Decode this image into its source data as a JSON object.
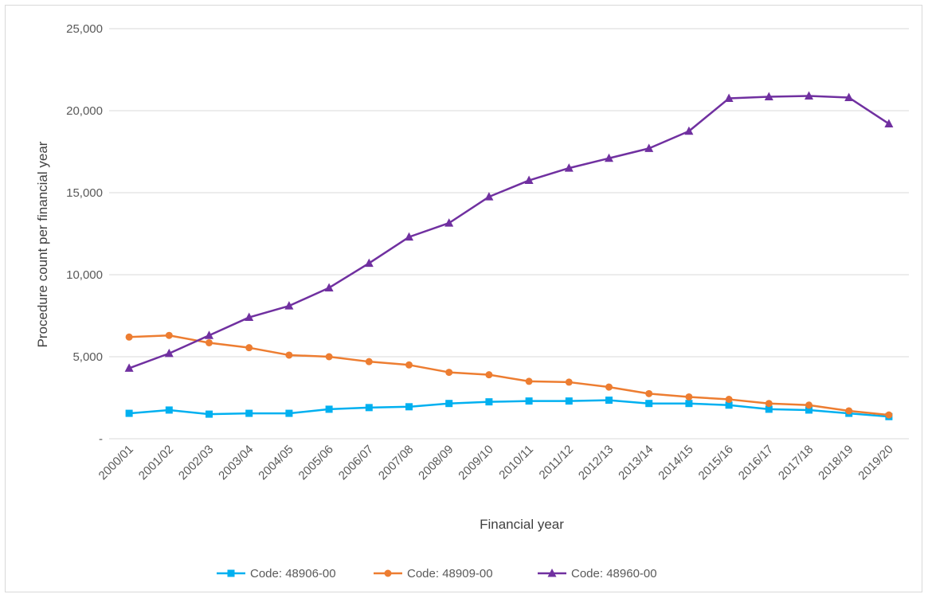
{
  "chart_data": {
    "type": "line",
    "title": "",
    "xlabel": "Financial year",
    "ylabel": "Procedure count per financial year",
    "ylim": [
      0,
      25000
    ],
    "yticks": [
      0,
      5000,
      10000,
      15000,
      20000,
      25000
    ],
    "ytick_labels": [
      "-",
      "5,000",
      "10,000",
      "15,000",
      "20,000",
      "25,000"
    ],
    "grid": "horizontal",
    "legend_position": "bottom",
    "categories": [
      "2000/01",
      "2001/02",
      "2002/03",
      "2003/04",
      "2004/05",
      "2005/06",
      "2006/07",
      "2007/08",
      "2008/09",
      "2009/10",
      "2010/11",
      "2011/12",
      "2012/13",
      "2013/14",
      "2014/15",
      "2015/16",
      "2016/17",
      "2017/18",
      "2018/19",
      "2019/20"
    ],
    "series": [
      {
        "name": "Code: 48906-00",
        "color": "#00b0f0",
        "marker": "square",
        "values": [
          1550,
          1750,
          1500,
          1550,
          1550,
          1800,
          1900,
          1950,
          2150,
          2250,
          2300,
          2300,
          2350,
          2150,
          2150,
          2050,
          1800,
          1750,
          1550,
          1350
        ]
      },
      {
        "name": "Code: 48909-00",
        "color": "#ed7d31",
        "marker": "circle",
        "values": [
          6200,
          6300,
          5850,
          5550,
          5100,
          5000,
          4700,
          4500,
          4050,
          3900,
          3500,
          3450,
          3150,
          2750,
          2550,
          2400,
          2150,
          2050,
          1700,
          1450
        ]
      },
      {
        "name": "Code: 48960-00",
        "color": "#7030a0",
        "marker": "triangle",
        "values": [
          4300,
          5200,
          6300,
          7400,
          8100,
          9200,
          10700,
          12300,
          13150,
          14750,
          15750,
          16500,
          17100,
          17700,
          18750,
          20750,
          20850,
          20900,
          20800,
          19200
        ]
      }
    ]
  }
}
